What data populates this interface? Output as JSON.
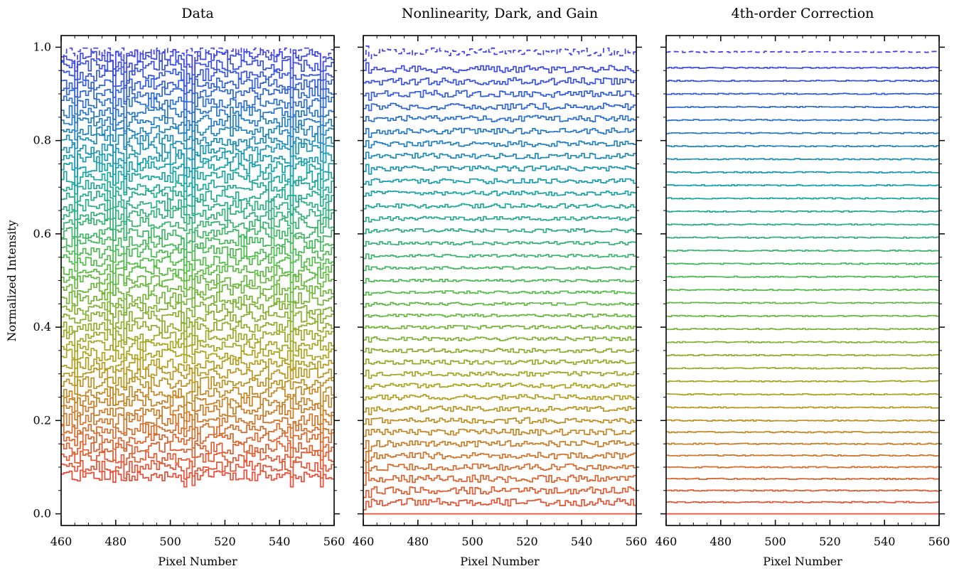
{
  "chart_data": [
    {
      "type": "line",
      "title": "Data",
      "xlabel": "Pixel Number",
      "ylabel": "Normalized Intensity",
      "xlim": [
        460,
        560
      ],
      "ylim": [
        -0.025,
        1.025
      ],
      "xticks": [
        "460",
        "480",
        "500",
        "520",
        "540",
        "560"
      ],
      "yticks": [
        "0.0",
        "0.2",
        "0.4",
        "0.6",
        "0.8",
        "1.0"
      ],
      "trace_levels": [
        0.08,
        0.1,
        0.12,
        0.14,
        0.16,
        0.18,
        0.2,
        0.22,
        0.24,
        0.26,
        0.28,
        0.3,
        0.32,
        0.34,
        0.36,
        0.38,
        0.4,
        0.42,
        0.44,
        0.46,
        0.48,
        0.5,
        0.52,
        0.54,
        0.56,
        0.58,
        0.6,
        0.62,
        0.64,
        0.66,
        0.68,
        0.7,
        0.72,
        0.74,
        0.76,
        0.78,
        0.8,
        0.82,
        0.84,
        0.86,
        0.88,
        0.9,
        0.92,
        0.94,
        0.96,
        0.98,
        0.99
      ],
      "absorption_lines_px": [
        465,
        479,
        483,
        505,
        508,
        544,
        555
      ],
      "step": "post"
    },
    {
      "type": "line",
      "title": "Nonlinearity, Dark, and Gain",
      "xlabel": "Pixel Number",
      "ylabel": "",
      "xlim": [
        460,
        560
      ],
      "ylim": [
        -0.025,
        1.025
      ],
      "xticks": [
        "460",
        "480",
        "500",
        "520",
        "540",
        "560"
      ],
      "trace_levels": [
        0.0,
        0.025,
        0.05,
        0.075,
        0.1,
        0.125,
        0.15,
        0.175,
        0.2,
        0.225,
        0.25,
        0.275,
        0.3,
        0.325,
        0.35,
        0.375,
        0.4,
        0.425,
        0.45,
        0.475,
        0.5,
        0.527,
        0.553,
        0.58,
        0.607,
        0.633,
        0.66,
        0.687,
        0.713,
        0.74,
        0.767,
        0.793,
        0.82,
        0.847,
        0.873,
        0.9,
        0.927,
        0.953,
        0.99
      ],
      "step": "post"
    },
    {
      "type": "line",
      "title": "4th-order Correction",
      "xlabel": "Pixel Number",
      "ylabel": "",
      "xlim": [
        460,
        560
      ],
      "ylim": [
        -0.025,
        1.025
      ],
      "xticks": [
        "460",
        "480",
        "500",
        "520",
        "540",
        "560"
      ],
      "trace_levels": [
        0.0,
        0.025,
        0.05,
        0.075,
        0.1,
        0.125,
        0.15,
        0.175,
        0.2,
        0.228,
        0.256,
        0.284,
        0.312,
        0.34,
        0.368,
        0.396,
        0.424,
        0.452,
        0.48,
        0.508,
        0.536,
        0.564,
        0.592,
        0.62,
        0.648,
        0.676,
        0.704,
        0.732,
        0.76,
        0.788,
        0.816,
        0.844,
        0.872,
        0.9,
        0.928,
        0.956,
        0.99
      ],
      "step": "post"
    }
  ]
}
